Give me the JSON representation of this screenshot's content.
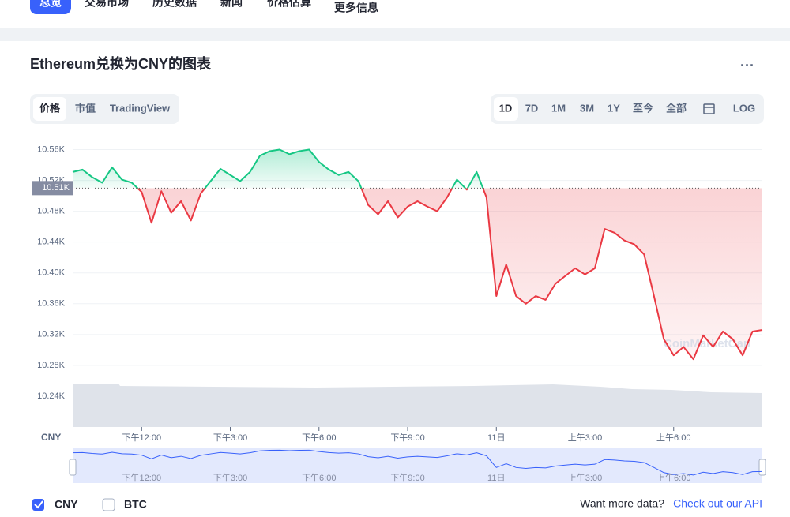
{
  "nav": [
    "总览",
    "交易市场",
    "历史数据",
    "新闻",
    "价格估算",
    "更多信息"
  ],
  "title": "Ethereum兑换为CNY的图表",
  "chart_tabs": [
    "价格",
    "市值",
    "TradingView"
  ],
  "ranges": [
    "1D",
    "7D",
    "1M",
    "3M",
    "1Y",
    "至今",
    "全部",
    "LOG"
  ],
  "chart_data": {
    "type": "line",
    "ylabel": "CNY",
    "watermark": "CoinMarketCap",
    "categories": [
      null,
      null,
      null,
      null,
      null,
      null,
      null,
      "下午12:00",
      null,
      null,
      null,
      null,
      null,
      null,
      null,
      null,
      "下午3:00",
      null,
      null,
      null,
      null,
      null,
      null,
      null,
      null,
      "下午6:00",
      null,
      null,
      null,
      null,
      null,
      null,
      null,
      null,
      "下午9:00",
      null,
      null,
      null,
      null,
      null,
      null,
      null,
      null,
      "11日",
      null,
      null,
      null,
      null,
      null,
      null,
      null,
      null,
      "上午3:00",
      null,
      null,
      null,
      null,
      null,
      null,
      null,
      null,
      "上午6:00",
      null,
      null,
      null,
      null,
      null,
      null,
      null,
      null,
      null
    ],
    "series": [
      {
        "name": "CNY",
        "values": [
          10531,
          10534,
          10524,
          10517,
          10537,
          10521,
          10517,
          10505,
          10465,
          10506,
          10478,
          10493,
          10468,
          10503,
          10519,
          10535,
          10527,
          10519,
          10531,
          10552,
          10558,
          10560,
          10554,
          10558,
          10560,
          10544,
          10534,
          10527,
          10531,
          10519,
          10488,
          10476,
          10493,
          10472,
          10486,
          10493,
          10486,
          10480,
          10498,
          10521,
          10508,
          10531,
          10498,
          10370,
          10411,
          10370,
          10360,
          10370,
          10365,
          10386,
          10396,
          10406,
          10398,
          10406,
          10457,
          10452,
          10442,
          10437,
          10424,
          10370,
          10314,
          10293,
          10304,
          10288,
          10319,
          10304,
          10324,
          10314,
          10293,
          10324,
          10326
        ]
      }
    ],
    "reference": {
      "value": 10510,
      "label": "10.51K"
    },
    "up_color": "#16c784",
    "down_color": "#ea3943",
    "ylim": [
      10200,
      10580
    ],
    "yticks": [
      {
        "value": 10240,
        "label": "10.24K"
      },
      {
        "value": 10280,
        "label": "10.28K"
      },
      {
        "value": 10320,
        "label": "10.32K"
      },
      {
        "value": 10360,
        "label": "10.36K"
      },
      {
        "value": 10400,
        "label": "10.40K"
      },
      {
        "value": 10440,
        "label": "10.44K"
      },
      {
        "value": 10480,
        "label": "10.48K"
      },
      {
        "value": 10520,
        "label": "10.52K"
      },
      {
        "value": 10560,
        "label": "10.56K"
      }
    ],
    "grid": true
  },
  "legend": [
    "CNY",
    "BTC"
  ],
  "footer": {
    "text": "Want more data?",
    "link": "Check out our API"
  }
}
